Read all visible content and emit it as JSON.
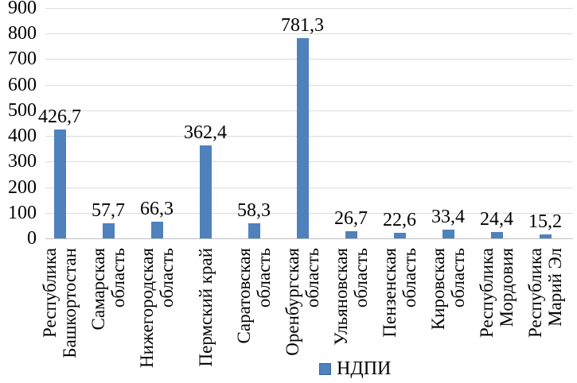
{
  "chart_data": {
    "type": "bar",
    "title": "",
    "categories": [
      "Республика Башкортостан",
      "Самарская область",
      "Нижегородская область",
      "Пермский край",
      "Саратовская область",
      "Оренбургская область",
      "Ульяновская область",
      "Пензенская область",
      "Кировская область",
      "Республика Мордовия",
      "Республика Марий Эл"
    ],
    "category_display_lines": [
      [
        "Республика",
        "Башкортостан"
      ],
      [
        "Самарская",
        "область"
      ],
      [
        "Нижегородская",
        "область"
      ],
      [
        "Пермский край"
      ],
      [
        "Саратовская",
        "область"
      ],
      [
        "Оренбургская",
        "область"
      ],
      [
        "Ульяновская",
        "область"
      ],
      [
        "Пензенская",
        "область"
      ],
      [
        "Кировская",
        "область"
      ],
      [
        "Республика",
        "Мордовия"
      ],
      [
        "Республика",
        "Марий Эл"
      ]
    ],
    "series": [
      {
        "name": "НДПИ",
        "values": [
          426.7,
          57.7,
          66.3,
          362.4,
          58.3,
          781.3,
          26.7,
          22.6,
          33.4,
          24.4,
          15.2
        ]
      }
    ],
    "value_labels": [
      "426,7",
      "57,7",
      "66,3",
      "362,4",
      "58,3",
      "781,3",
      "26,7",
      "22,6",
      "33,4",
      "24,4",
      "15,2"
    ],
    "xlabel": "",
    "ylabel": "",
    "ylim": [
      0,
      900
    ],
    "ytick_interval": 100,
    "ytick_labels": [
      "0",
      "100",
      "200",
      "300",
      "400",
      "500",
      "600",
      "700",
      "800",
      "900"
    ],
    "grid": true,
    "legend": {
      "label": "НДПИ",
      "position": "bottom"
    },
    "colors": {
      "bar": "#4F81BD",
      "legend_swatch_border": "#3A679C",
      "gridline": "#DCDCDC",
      "axis_line": "#BFBFBF",
      "text": "#000000"
    }
  }
}
